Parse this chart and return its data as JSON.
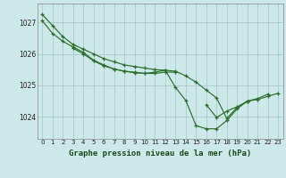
{
  "xlabel": "Graphe pression niveau de la mer (hPa)",
  "bg_color": "#cce8e8",
  "grid_color": "#aacccc",
  "line_color": "#2d6e2d",
  "xlim": [
    -0.5,
    23.5
  ],
  "ylim": [
    1023.3,
    1027.6
  ],
  "yticks": [
    1024,
    1025,
    1026,
    1027
  ],
  "xticks": [
    0,
    1,
    2,
    3,
    4,
    5,
    6,
    7,
    8,
    9,
    10,
    11,
    12,
    13,
    14,
    15,
    16,
    17,
    18,
    19,
    20,
    21,
    22,
    23
  ],
  "series": [
    {
      "x": [
        0,
        1,
        2,
        3,
        4,
        5,
        6,
        7,
        8,
        9,
        10,
        11,
        12,
        13,
        14,
        15,
        16,
        17,
        18,
        19,
        20,
        21,
        22,
        23
      ],
      "y": [
        1027.25,
        1026.9,
        1026.55,
        1026.3,
        1026.15,
        1026.0,
        1025.85,
        1025.75,
        1025.65,
        1025.6,
        1025.55,
        1025.5,
        1025.48,
        1025.45,
        1025.3,
        1025.1,
        1024.85,
        1024.6,
        1023.95,
        1024.3,
        1024.5,
        1024.55,
        1024.65,
        1024.75
      ]
    },
    {
      "x": [
        0,
        1,
        2,
        3,
        4,
        5,
        6,
        7,
        8,
        9,
        10,
        11,
        12,
        13,
        14,
        15,
        16,
        17,
        18,
        19,
        20,
        21,
        22
      ],
      "y": [
        1027.05,
        1026.65,
        1026.4,
        1026.22,
        1026.05,
        1025.8,
        1025.65,
        1025.52,
        1025.45,
        1025.42,
        1025.38,
        1025.42,
        1025.48,
        1024.93,
        1024.52,
        1023.72,
        1023.62,
        1023.62,
        1023.88,
        1024.25,
        1024.5,
        1024.58,
        1024.72
      ]
    },
    {
      "x": [
        3,
        4,
        5,
        6,
        7,
        8,
        9,
        10,
        11,
        12,
        13
      ],
      "y": [
        1026.18,
        1026.0,
        1025.78,
        1025.62,
        1025.52,
        1025.45,
        1025.4,
        1025.38,
        1025.38,
        1025.42,
        1025.42
      ]
    },
    {
      "x": [
        16,
        17,
        18,
        19,
        20
      ],
      "y": [
        1024.38,
        1023.98,
        1024.18,
        1024.32,
        1024.48
      ]
    }
  ]
}
